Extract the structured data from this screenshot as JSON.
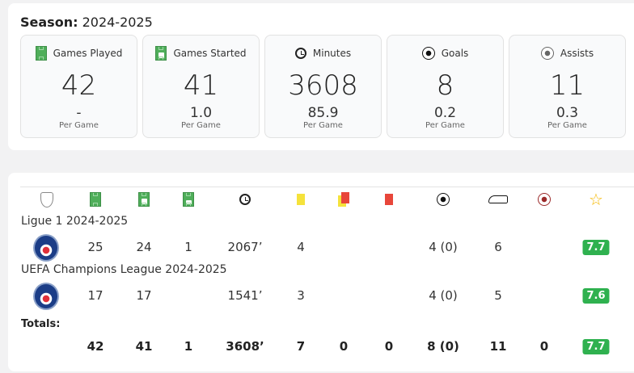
{
  "season": {
    "label": "Season:",
    "value": "2024-2025"
  },
  "cards": [
    {
      "icon": "pitch-icon",
      "title": "Games Played",
      "value": "42",
      "per_game": "-",
      "per_game_label": "Per Game"
    },
    {
      "icon": "pitch-shirt-icon",
      "title": "Games Started",
      "value": "41",
      "per_game": "1.0",
      "per_game_label": "Per Game"
    },
    {
      "icon": "watch-icon",
      "title": "Minutes",
      "value": "3608",
      "per_game": "85.9",
      "per_game_label": "Per Game"
    },
    {
      "icon": "ball-icon",
      "title": "Goals",
      "value": "8",
      "per_game": "0.2",
      "per_game_label": "Per Game"
    },
    {
      "icon": "ball-grey-icon",
      "title": "Assists",
      "value": "11",
      "per_game": "0.3",
      "per_game_label": "Per Game"
    }
  ],
  "table": {
    "header_icons": [
      "shield-icon",
      "games-played-icon",
      "games-started-icon",
      "substitution-icon",
      "minutes-icon",
      "yellow-card-icon",
      "second-yellow-icon",
      "red-card-icon",
      "goals-icon",
      "assists-boot-icon",
      "own-goal-icon",
      "rating-star-icon"
    ],
    "competitions": [
      {
        "name": "Ligue 1 2024-2025",
        "team": "PSG",
        "values": [
          "25",
          "24",
          "1",
          "2067’",
          "4",
          "",
          "",
          "4 (0)",
          "6",
          ""
        ],
        "rating": "7.7"
      },
      {
        "name": "UEFA Champions League 2024-2025",
        "team": "PSG",
        "values": [
          "17",
          "17",
          "",
          "1541’",
          "3",
          "",
          "",
          "4 (0)",
          "5",
          ""
        ],
        "rating": "7.6"
      }
    ],
    "totals_label": "Totals:",
    "totals": {
      "values": [
        "42",
        "41",
        "1",
        "3608’",
        "7",
        "0",
        "0",
        "8 (0)",
        "11",
        "0"
      ],
      "rating": "7.7"
    },
    "rating_color": "#2fb14f"
  }
}
